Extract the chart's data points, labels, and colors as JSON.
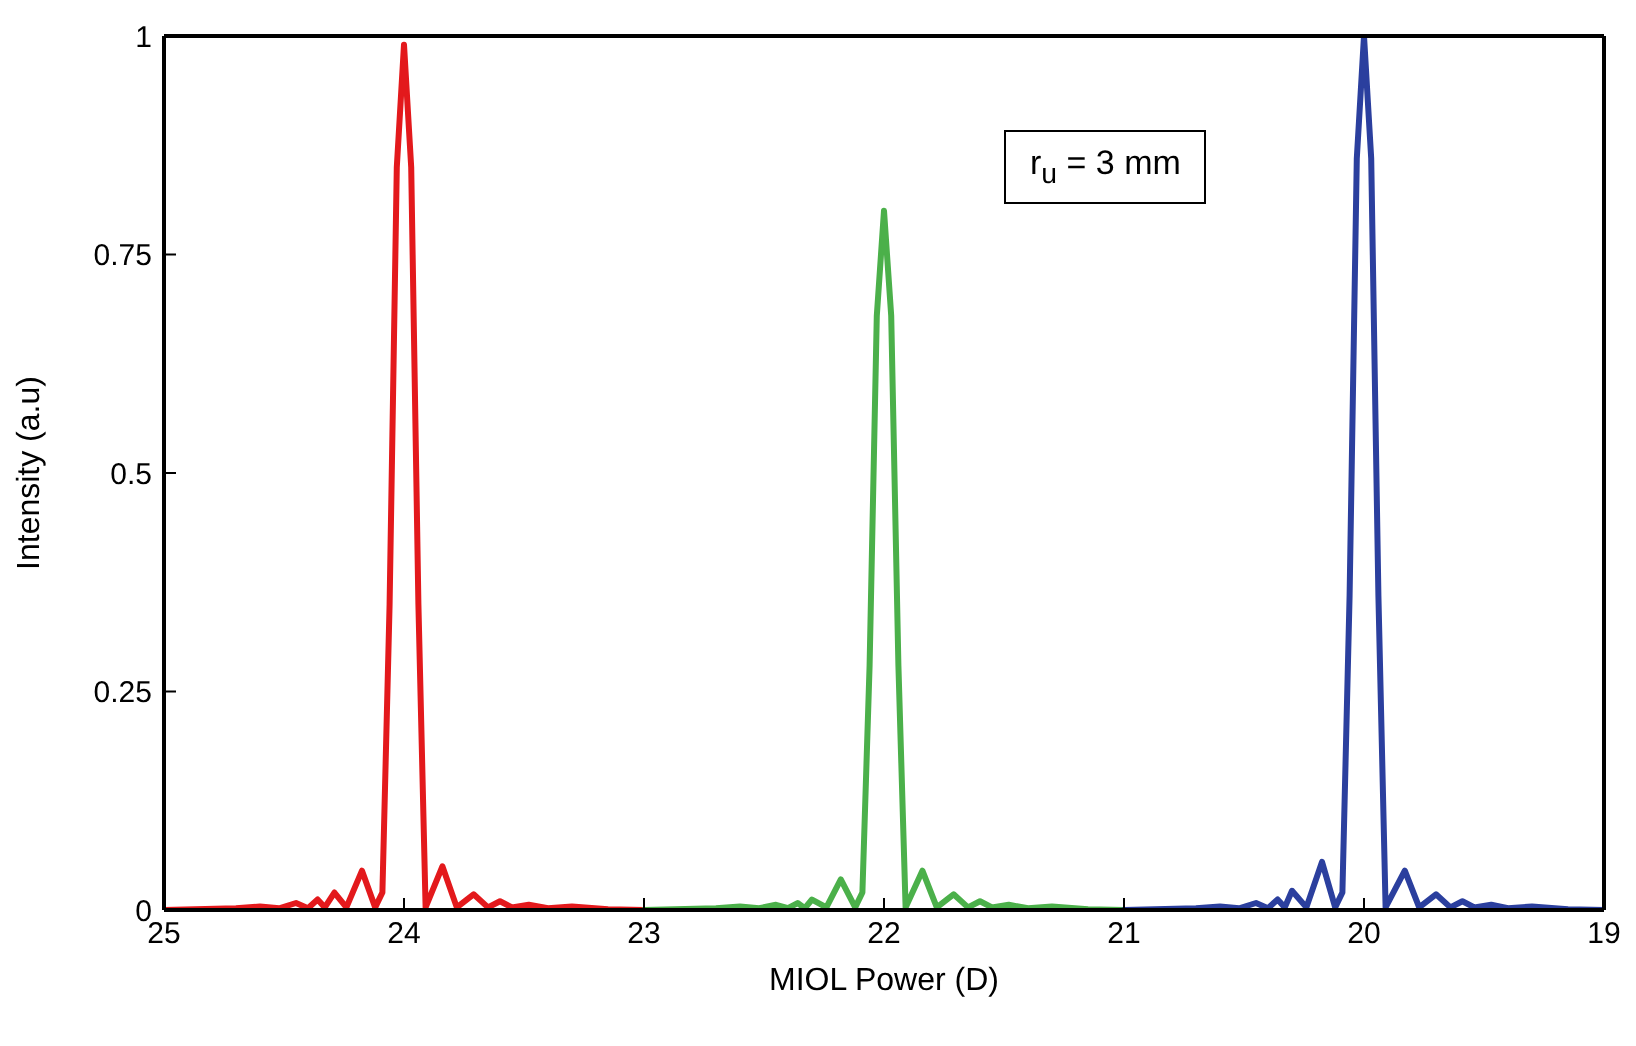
{
  "chart_data": {
    "type": "line",
    "xlabel": "MIOL Power (D)",
    "ylabel": "Intensity (a.u)",
    "xlim": [
      25,
      19
    ],
    "xticks": [
      25,
      24,
      23,
      22,
      21,
      20,
      19
    ],
    "ylim": [
      0,
      1
    ],
    "yticks": [
      0,
      0.25,
      0.5,
      0.75,
      1
    ],
    "grid": false,
    "line_style": "solid",
    "annotations": [
      "r$_{u}$ = 3 mm"
    ],
    "series": [
      {
        "color": "#e3191c",
        "x": [
          25,
          24.7,
          24.6,
          24.52,
          24.45,
          24.4,
          24.36,
          24.33,
          24.29,
          24.24,
          24.175,
          24.12,
          24.09,
          24.06,
          24.03,
          24,
          23.97,
          23.94,
          23.91,
          23.84,
          23.78,
          23.71,
          23.65,
          23.6,
          23.55,
          23.48,
          23.4,
          23.3,
          23.15,
          23
        ],
        "values": [
          0,
          0.002,
          0.004,
          0.002,
          0.008,
          0.002,
          0.012,
          0.003,
          0.02,
          0.003,
          0.045,
          0.003,
          0.02,
          0.35,
          0.85,
          0.99,
          0.85,
          0.35,
          0.003,
          0.05,
          0.003,
          0.018,
          0.003,
          0.01,
          0.003,
          0.006,
          0.002,
          0.004,
          0.001,
          0
        ]
      },
      {
        "color": "#4bb04a",
        "x": [
          23,
          22.7,
          22.6,
          22.52,
          22.45,
          22.4,
          22.36,
          22.33,
          22.3,
          22.24,
          22.18,
          22.12,
          22.09,
          22.06,
          22.03,
          22,
          21.97,
          21.94,
          21.91,
          21.84,
          21.78,
          21.71,
          21.65,
          21.6,
          21.55,
          21.48,
          21.4,
          21.3,
          21.15,
          21
        ],
        "values": [
          0,
          0.002,
          0.004,
          0.002,
          0.006,
          0.002,
          0.008,
          0.002,
          0.012,
          0.003,
          0.035,
          0.003,
          0.02,
          0.28,
          0.68,
          0.8,
          0.68,
          0.28,
          0.003,
          0.045,
          0.003,
          0.018,
          0.003,
          0.01,
          0.003,
          0.006,
          0.002,
          0.004,
          0.001,
          0
        ]
      },
      {
        "color": "#2b3f9e",
        "x": [
          21,
          20.7,
          20.6,
          20.52,
          20.45,
          20.4,
          20.36,
          20.33,
          20.3,
          20.24,
          20.175,
          20.12,
          20.09,
          20.06,
          20.03,
          20,
          19.97,
          19.94,
          19.91,
          19.83,
          19.77,
          19.7,
          19.64,
          19.59,
          19.54,
          19.47,
          19.4,
          19.3,
          19.15,
          19
        ],
        "values": [
          0,
          0.002,
          0.004,
          0.002,
          0.008,
          0.002,
          0.012,
          0.003,
          0.022,
          0.003,
          0.055,
          0.003,
          0.02,
          0.36,
          0.86,
          1,
          0.86,
          0.36,
          0.003,
          0.045,
          0.003,
          0.018,
          0.003,
          0.01,
          0.003,
          0.006,
          0.002,
          0.004,
          0.001,
          0
        ]
      }
    ]
  }
}
